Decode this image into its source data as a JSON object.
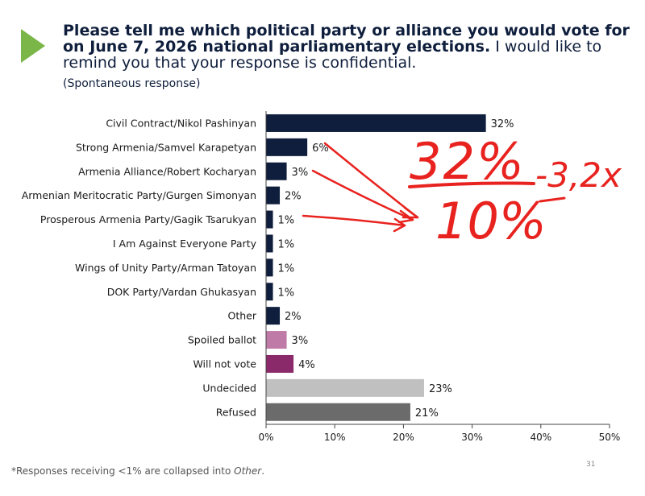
{
  "header": {
    "title_bold": "Please tell me which political party or alliance you would vote for on June 7, 2026 national parliamentary elections.",
    "title_regular": " I would like to remind you that your response is confidential.",
    "subtitle": "(Spontaneous response)"
  },
  "footer": {
    "footnote_prefix": "*Responses receiving <1% are collapsed into ",
    "footnote_italic": "Other",
    "footnote_suffix": ".",
    "page_number": "31"
  },
  "annotation": {
    "line1": "32%",
    "line1_suffix": "-3,2x",
    "line2": "10%",
    "color": "#e8231f"
  },
  "chart_data": {
    "type": "bar",
    "orientation": "horizontal",
    "categories": [
      "Civil Contract/Nikol Pashinyan",
      "Strong Armenia/Samvel Karapetyan",
      "Armenia Alliance/Robert Kocharyan",
      "Armenian Meritocratic Party/Gurgen Simonyan",
      "Prosperous Armenia Party/Gagik Tsarukyan",
      "I Am Against Everyone Party",
      "Wings of Unity Party/Arman Tatoyan",
      "DOK Party/Vardan Ghukasyan",
      "Other",
      "Spoiled ballot",
      "Will not vote",
      "Undecided",
      "Refused"
    ],
    "values": [
      32,
      6,
      3,
      2,
      1,
      1,
      1,
      1,
      2,
      3,
      4,
      23,
      21
    ],
    "value_labels": [
      "32%",
      "6%",
      "3%",
      "2%",
      "1%",
      "1%",
      "1%",
      "1%",
      "2%",
      "3%",
      "4%",
      "23%",
      "21%"
    ],
    "bar_colors": [
      "#0e1e3c",
      "#0e1e3c",
      "#0e1e3c",
      "#0e1e3c",
      "#0e1e3c",
      "#0e1e3c",
      "#0e1e3c",
      "#0e1e3c",
      "#0e1e3c",
      "#c07aa8",
      "#8b2a6a",
      "#c0c0c0",
      "#6b6b6b"
    ],
    "xlim": [
      0,
      50
    ],
    "xticks": [
      0,
      10,
      20,
      30,
      40,
      50
    ],
    "xtick_labels": [
      "0%",
      "10%",
      "20%",
      "30%",
      "40%",
      "50%"
    ],
    "grid": false,
    "legend": "none"
  }
}
